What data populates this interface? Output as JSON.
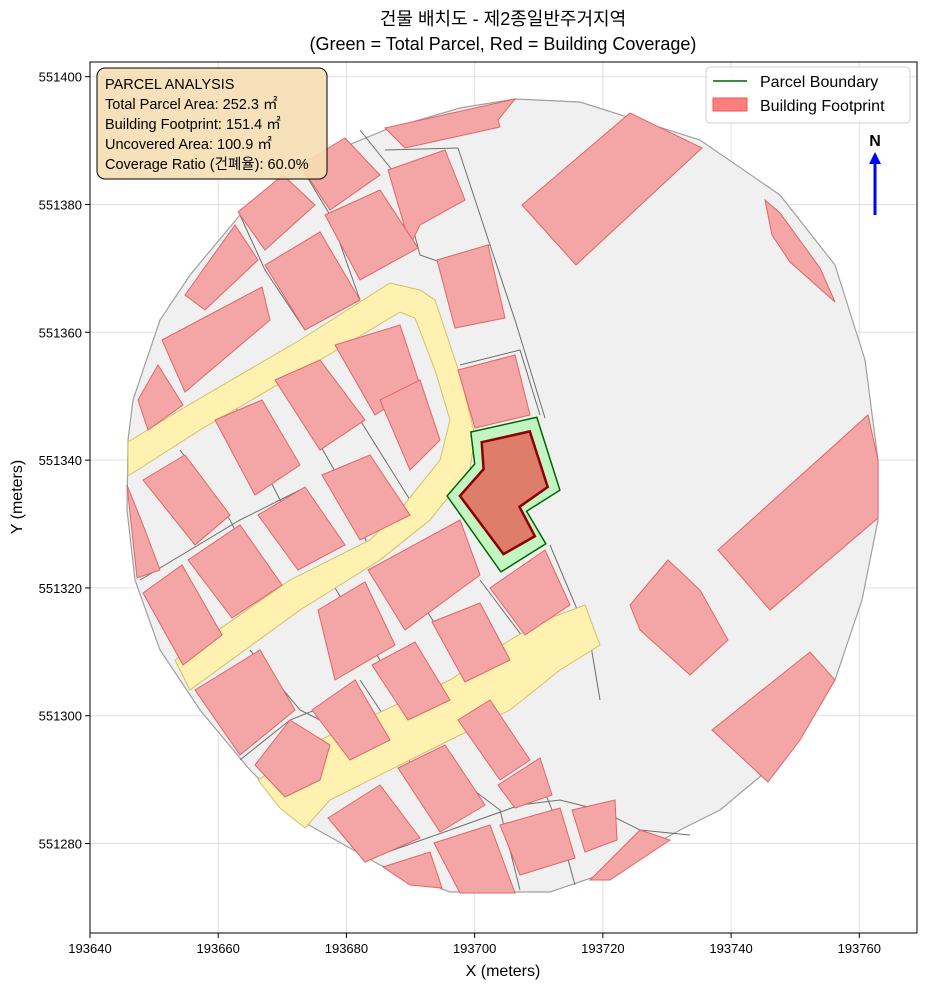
{
  "chart_data": {
    "type": "map",
    "title": "건물 배치도 - 제2종일반주거지역",
    "subtitle": "(Green = Total Parcel, Red = Building Coverage)",
    "xlabel": "X (meters)",
    "ylabel": "Y (meters)",
    "xlim": [
      193640,
      193769
    ],
    "ylim": [
      551266,
      551402.3
    ],
    "xticks": [
      193640,
      193660,
      193680,
      193700,
      193720,
      193740,
      193760
    ],
    "yticks": [
      551280,
      551300,
      551320,
      551340,
      551360,
      551380,
      551400
    ],
    "grid": true,
    "legend": {
      "placement": "top-right",
      "entries": [
        {
          "label": "Parcel Boundary",
          "type": "line",
          "color": "#006400"
        },
        {
          "label": "Building Footprint",
          "type": "patch",
          "color": "#ff7f7f"
        }
      ]
    },
    "parcel": {
      "fill": "#c3f5c3",
      "edge": "#006400",
      "points": [
        [
          193699.4,
          551344.4
        ],
        [
          193709.7,
          551346.7
        ],
        [
          193713.3,
          551335.3
        ],
        [
          193708.1,
          551332.0
        ],
        [
          193711.1,
          551326.9
        ],
        [
          193704.1,
          551322.5
        ],
        [
          193695.7,
          551334.4
        ],
        [
          193700.0,
          551339.4
        ]
      ]
    },
    "building": {
      "fill": "#e07060",
      "edge": "#8b0000",
      "points": [
        [
          193701.1,
          551342.8
        ],
        [
          193708.6,
          551344.5
        ],
        [
          193711.4,
          551335.8
        ],
        [
          193707.0,
          551332.7
        ],
        [
          193709.4,
          551328.1
        ],
        [
          193704.5,
          551325.3
        ],
        [
          193697.7,
          551334.4
        ],
        [
          193701.4,
          551338.6
        ]
      ]
    },
    "north_arrow": {
      "label": "N",
      "color": "#0000ff"
    },
    "info_box": {
      "title": "PARCEL ANALYSIS",
      "lines": [
        "Total Parcel Area: 252.3 ㎡",
        "Building Footprint: 151.4 ㎡",
        "Uncovered Area: 100.9 ㎡",
        "Coverage Ratio (건폐율): 60.0%"
      ],
      "total_parcel_area": 252.3,
      "building_footprint": 151.4,
      "uncovered_area": 100.9,
      "coverage_ratio_percent": 60.0
    }
  }
}
